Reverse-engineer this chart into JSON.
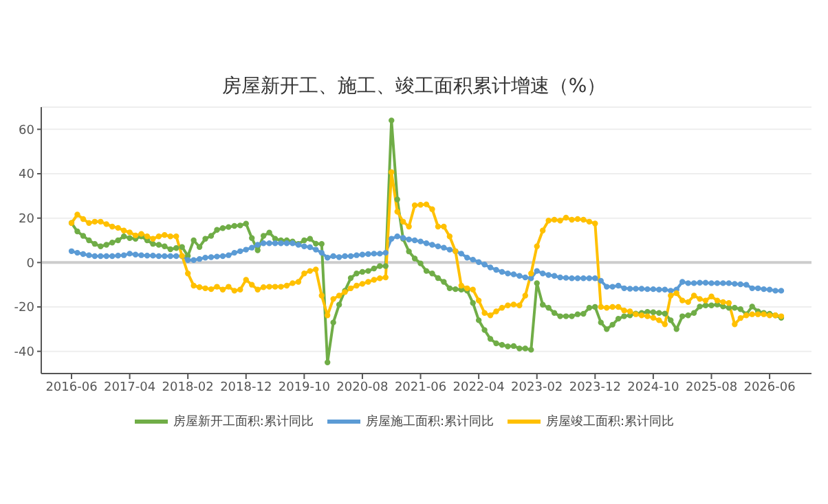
{
  "chart_data": {
    "type": "line",
    "title": "房屋新开工、施工、竣工面积累计增速（%）",
    "categories": [
      "2016-06",
      null,
      null,
      null,
      null,
      null,
      null,
      null,
      null,
      null,
      "2017-04",
      null,
      null,
      null,
      null,
      null,
      null,
      null,
      null,
      null,
      "2018-02",
      null,
      null,
      null,
      null,
      null,
      null,
      null,
      null,
      null,
      "2018-12",
      null,
      null,
      null,
      null,
      null,
      null,
      null,
      null,
      null,
      "2019-10",
      null,
      null,
      null,
      null,
      null,
      null,
      null,
      null,
      null,
      "2020-08",
      null,
      null,
      null,
      null,
      null,
      null,
      null,
      null,
      null,
      "2021-06",
      null,
      null,
      null,
      null,
      null,
      null,
      null,
      null,
      null,
      "2022-04",
      null,
      null,
      null,
      null,
      null,
      null,
      null,
      null,
      null,
      "2023-02",
      null,
      null,
      null,
      null,
      null,
      null,
      null,
      null,
      null,
      "2023-12",
      null,
      null,
      null,
      null,
      null,
      null,
      null,
      null,
      null,
      "2024-10",
      null,
      null,
      null,
      null,
      null,
      null,
      null,
      null,
      null,
      "2025-08",
      null,
      null,
      null,
      null,
      null,
      null,
      null,
      null,
      null,
      "2026-06",
      null,
      null
    ],
    "series": [
      {
        "name": "房屋新开工面积:累计同比",
        "color": "#70ad47",
        "values": [
          17.8,
          14,
          12,
          10,
          8.4,
          7.3,
          8,
          9,
          10,
          11.8,
          11,
          10.7,
          11.8,
          10,
          8.4,
          8,
          7.3,
          6,
          6.5,
          7,
          3,
          10,
          7,
          10.7,
          12,
          14.7,
          15.5,
          16,
          16.5,
          16.7,
          17.5,
          11,
          5.5,
          12,
          13.5,
          10.7,
          10,
          10,
          9.5,
          8.4,
          10,
          10.7,
          8.5,
          8.4,
          -45,
          -27,
          -19,
          -12.7,
          -7,
          -4.9,
          -4.2,
          -3.8,
          -2.7,
          -1.6,
          -1.6,
          64,
          28.4,
          10.7,
          5,
          1.8,
          -0.4,
          -3.8,
          -4.9,
          -7,
          -8.7,
          -11.6,
          -12,
          -12.2,
          -12.7,
          -18.2,
          -26,
          -30.4,
          -34.4,
          -36.4,
          -37.1,
          -37.8,
          -37.6,
          -38.7,
          -38.7,
          -39.3,
          -9.3,
          -19,
          -20.4,
          -22.7,
          -24.2,
          -24.2,
          -24.2,
          -23.3,
          -23.1,
          -20.4,
          -20,
          -27,
          -30,
          -28,
          -25.3,
          -24.2,
          -23.8,
          -23,
          -22.7,
          -22.2,
          -22.4,
          -22.7,
          -23,
          -26,
          -30,
          -24.2,
          -23.8,
          -22.7,
          -19.8,
          -19.3,
          -19.3,
          -18.9,
          -19.8,
          -20.4,
          -20.4,
          -21,
          -23.3,
          -19.8,
          -22,
          -22.7,
          -23.1,
          -23.8,
          -24.9
        ]
      },
      {
        "name": "房屋施工面积:累计同比",
        "color": "#5b9bd5",
        "values": [
          5.1,
          4.4,
          3.8,
          3.3,
          2.9,
          2.9,
          2.9,
          2.9,
          3.1,
          3.3,
          4,
          3.6,
          3.3,
          3.1,
          3.1,
          2.9,
          2.9,
          2.9,
          2.9,
          2.9,
          1.1,
          1.1,
          1.6,
          2.2,
          2.4,
          2.7,
          2.9,
          3.3,
          4.4,
          5.1,
          5.8,
          6.7,
          8,
          8.7,
          8.7,
          8.7,
          8.7,
          8.7,
          8.7,
          8,
          7.3,
          6.9,
          5.8,
          4.4,
          2.2,
          2.9,
          2.4,
          2.9,
          2.9,
          3.3,
          3.6,
          3.8,
          4,
          4,
          4.4,
          10.7,
          11.8,
          11.1,
          10.4,
          10,
          9.5,
          8.7,
          8,
          7.3,
          6.7,
          5.8,
          5.1,
          4,
          2.2,
          1.3,
          0.2,
          -0.9,
          -2.2,
          -3.3,
          -4.2,
          -4.9,
          -5.3,
          -6,
          -6.7,
          -7.1,
          -3.8,
          -4.9,
          -5.6,
          -6,
          -6.7,
          -6.9,
          -7.1,
          -7.1,
          -7.1,
          -7.1,
          -7.1,
          -8.2,
          -10.9,
          -10.9,
          -10.4,
          -11.6,
          -11.8,
          -11.8,
          -11.8,
          -12,
          -12,
          -12.2,
          -12.2,
          -12.7,
          -12.2,
          -8.7,
          -9.3,
          -9.3,
          -9.1,
          -9.1,
          -9.3,
          -9.3,
          -9.3,
          -9.3,
          -9.6,
          -9.8,
          -10,
          -11.6,
          -11.6,
          -12,
          -12.2,
          -12.7,
          -12.7
        ]
      },
      {
        "name": "房屋竣工面积:累计同比",
        "color": "#ffc000",
        "values": [
          17.8,
          21.6,
          19.6,
          17.8,
          18.4,
          18.4,
          17.3,
          16.2,
          15.6,
          14.4,
          13.6,
          12.2,
          12.9,
          11.8,
          10.7,
          11.8,
          12.4,
          11.8,
          11.8,
          3,
          -4.9,
          -10.4,
          -11.1,
          -11.6,
          -12,
          -10.9,
          -12.2,
          -10.9,
          -12.7,
          -12.2,
          -7.8,
          -10,
          -12.2,
          -11.1,
          -10.9,
          -10.9,
          -10.9,
          -10.4,
          -9.3,
          -8.7,
          -4.9,
          -3.8,
          -3.1,
          -14.9,
          -23.8,
          -16.4,
          -14.9,
          -13.3,
          -11.6,
          -10.4,
          -9.6,
          -8.7,
          -7.8,
          -7.1,
          -6.7,
          40.7,
          22.9,
          18.4,
          16.2,
          25.8,
          26,
          26.2,
          24,
          16.2,
          16.2,
          11.8,
          5.1,
          -10.4,
          -11.6,
          -12.2,
          -17.1,
          -22.7,
          -23.8,
          -22,
          -20.4,
          -19.3,
          -18.9,
          -19.3,
          -14.9,
          -4.9,
          7.3,
          14.4,
          18.9,
          19.3,
          18.9,
          20.2,
          19.3,
          19.6,
          19.3,
          18.4,
          17.6,
          -20,
          -20.4,
          -20,
          -20,
          -21.6,
          -22,
          -23.3,
          -23.8,
          -24.2,
          -24.9,
          -26,
          -27.8,
          -14.9,
          -13.8,
          -17.1,
          -17.8,
          -14.9,
          -16.4,
          -17.1,
          -15.3,
          -17.1,
          -17.8,
          -18.2,
          -27.8,
          -25,
          -23.8,
          -23.3,
          -23.3,
          -23.3,
          -23.8,
          -23.8,
          -24.2
        ]
      }
    ],
    "ylim": [
      -50,
      70
    ],
    "yticks": [
      -40,
      -20,
      0,
      20,
      40,
      60
    ],
    "grid": "y",
    "legend": "bottom",
    "marker": "circle",
    "line_style": "solid",
    "ref_lines": [
      {
        "axis": "y",
        "value": 0,
        "color": "#cccccc"
      }
    ]
  }
}
